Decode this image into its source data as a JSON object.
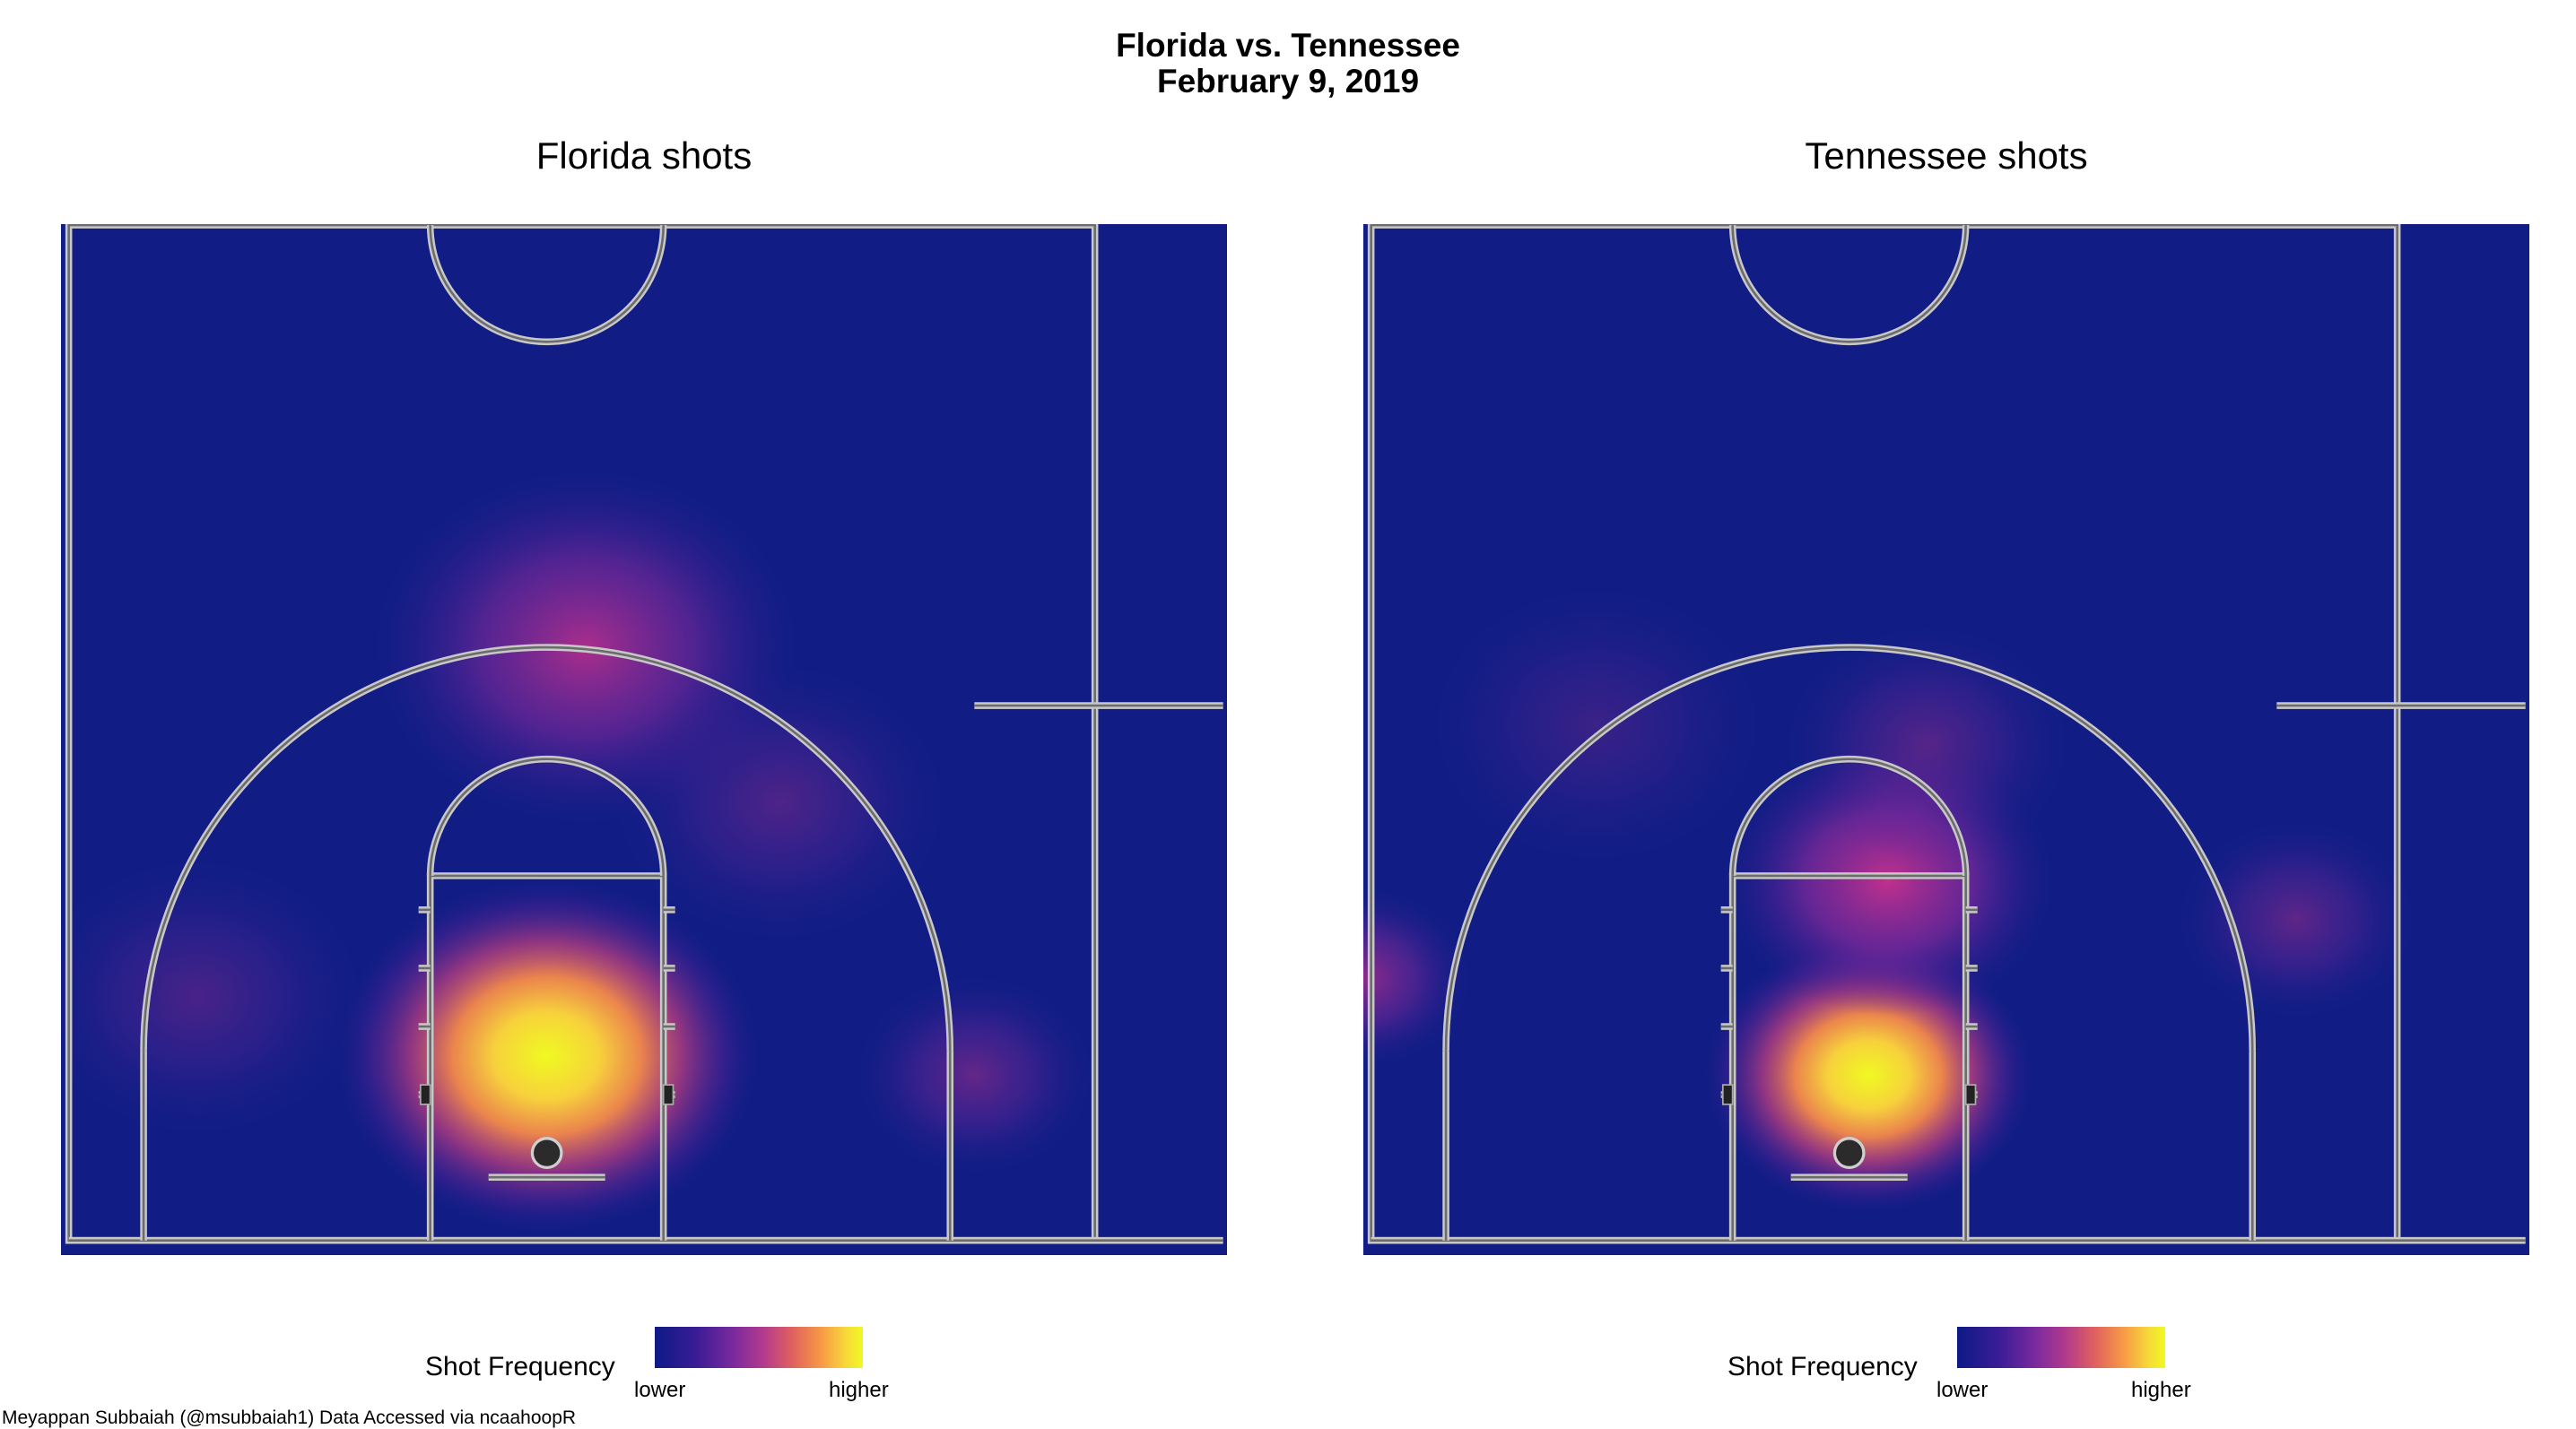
{
  "title_line1": "Florida vs. Tennessee",
  "title_line2": "February 9, 2019",
  "caption": "Meyappan Subbaiah (@msubbaiah1) Data Accessed via ncaahoopR",
  "legend": {
    "title": "Shot Frequency",
    "low": "lower",
    "high": "higher"
  },
  "colors": {
    "background": "#111d85",
    "court_lines": "#c8c8c8",
    "rim": "#2b2b2b",
    "scale": [
      "#0d1a86",
      "#7b2a9e",
      "#e0605e",
      "#f79a45",
      "#f0f921"
    ]
  },
  "chart_data": [
    {
      "type": "heatmap",
      "title": "Florida shots",
      "legend_title": "Shot Frequency",
      "density_peaks": [
        {
          "x": 0,
          "y": 5,
          "intensity": 1.0,
          "spread": 9
        },
        {
          "x": 2,
          "y": 26,
          "intensity": 0.55,
          "spread": 9
        },
        {
          "x": -18,
          "y": 8,
          "intensity": 0.2,
          "spread": 7
        },
        {
          "x": 22,
          "y": 4,
          "intensity": 0.3,
          "spread": 5
        },
        {
          "x": 12,
          "y": 18,
          "intensity": 0.22,
          "spread": 7
        }
      ]
    },
    {
      "type": "heatmap",
      "title": "Tennessee shots",
      "legend_title": "Shot Frequency",
      "density_peaks": [
        {
          "x": 1,
          "y": 4,
          "intensity": 1.0,
          "spread": 7
        },
        {
          "x": 2,
          "y": 14,
          "intensity": 0.7,
          "spread": 7
        },
        {
          "x": -25,
          "y": 9,
          "intensity": 0.45,
          "spread": 4.5
        },
        {
          "x": 23,
          "y": 12,
          "intensity": 0.28,
          "spread": 5
        },
        {
          "x": -13,
          "y": 22,
          "intensity": 0.15,
          "spread": 7
        },
        {
          "x": 4,
          "y": 21,
          "intensity": 0.25,
          "spread": 6
        }
      ]
    }
  ]
}
